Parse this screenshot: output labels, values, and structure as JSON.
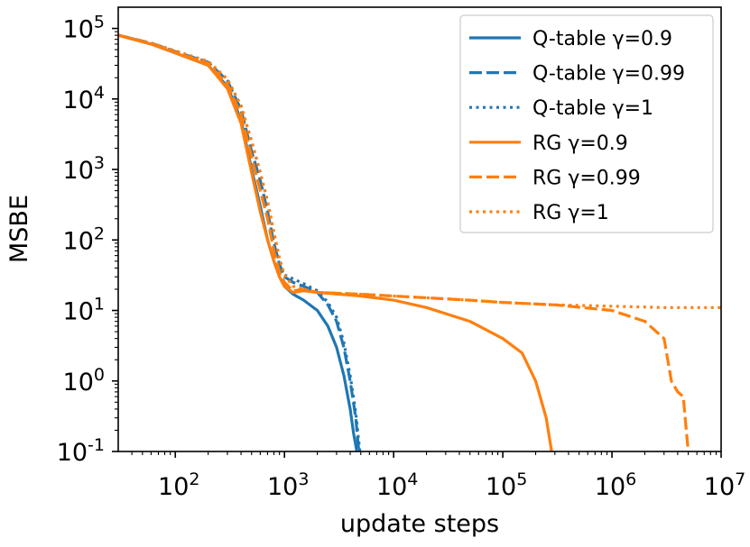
{
  "chart_data": {
    "type": "line",
    "title": "",
    "xlabel": "update steps",
    "ylabel": "MSBE",
    "xscale": "log",
    "yscale": "log",
    "xlim": [
      30,
      10000000
    ],
    "ylim": [
      0.1,
      200000
    ],
    "x_ticks": [
      {
        "value": 100,
        "base": "10",
        "exp": "2"
      },
      {
        "value": 1000,
        "base": "10",
        "exp": "3"
      },
      {
        "value": 10000,
        "base": "10",
        "exp": "4"
      },
      {
        "value": 100000,
        "base": "10",
        "exp": "5"
      },
      {
        "value": 1000000,
        "base": "10",
        "exp": "6"
      },
      {
        "value": 10000000,
        "base": "10",
        "exp": "7"
      }
    ],
    "y_ticks": [
      {
        "value": 0.1,
        "base": "10",
        "exp": "-1"
      },
      {
        "value": 1,
        "base": "10",
        "exp": "0"
      },
      {
        "value": 10,
        "base": "10",
        "exp": "1"
      },
      {
        "value": 100,
        "base": "10",
        "exp": "2"
      },
      {
        "value": 1000,
        "base": "10",
        "exp": "3"
      },
      {
        "value": 10000,
        "base": "10",
        "exp": "4"
      },
      {
        "value": 100000,
        "base": "10",
        "exp": "5"
      }
    ],
    "legend_position": "top-right",
    "series": [
      {
        "name": "Q-table γ=0.9",
        "color": "#1f77b4",
        "style": "solid",
        "x": [
          30,
          60,
          100,
          200,
          300,
          400,
          500,
          600,
          700,
          800,
          900,
          1000,
          1200,
          1500,
          2000,
          2500,
          3000,
          3500,
          4000,
          4300,
          4600
        ],
        "y": [
          80000,
          60000,
          45000,
          30000,
          15000,
          5000,
          1000,
          300,
          100,
          50,
          30,
          22,
          17,
          14,
          10,
          6,
          3,
          1.2,
          0.4,
          0.18,
          0.1
        ]
      },
      {
        "name": "Q-table γ=0.99",
        "color": "#1f77b4",
        "style": "dashed",
        "x": [
          30,
          60,
          100,
          200,
          300,
          400,
          500,
          600,
          700,
          800,
          900,
          1000,
          1200,
          1500,
          2000,
          2500,
          3000,
          3500,
          4000,
          4500,
          4800
        ],
        "y": [
          80000,
          62000,
          47000,
          33000,
          18000,
          7000,
          1800,
          700,
          250,
          90,
          45,
          30,
          25,
          22,
          18,
          12,
          7,
          3,
          1,
          0.3,
          0.1
        ]
      },
      {
        "name": "Q-table γ=1",
        "color": "#1f77b4",
        "style": "dotted",
        "x": [
          30,
          60,
          100,
          200,
          300,
          400,
          500,
          600,
          700,
          800,
          900,
          1000,
          1200,
          1500,
          2000,
          2500,
          3000,
          3500,
          4000,
          4500,
          4900
        ],
        "y": [
          80000,
          62000,
          48000,
          34000,
          19000,
          8000,
          2500,
          900,
          350,
          120,
          50,
          32,
          28,
          24,
          19,
          13,
          8,
          3.5,
          1.2,
          0.35,
          0.1
        ]
      },
      {
        "name": "RG γ=0.9",
        "color": "#ff7f0e",
        "style": "solid",
        "x": [
          30,
          60,
          100,
          200,
          300,
          400,
          500,
          600,
          700,
          800,
          900,
          1000,
          1200,
          1500,
          2000,
          5000,
          10000,
          20000,
          50000,
          100000,
          150000,
          200000,
          250000,
          280000
        ],
        "y": [
          80000,
          60000,
          45000,
          30000,
          14000,
          4500,
          900,
          250,
          100,
          50,
          30,
          22,
          18,
          19,
          18,
          16,
          14,
          11,
          7,
          4,
          2.5,
          1,
          0.3,
          0.1
        ]
      },
      {
        "name": "RG γ=0.99",
        "color": "#ff7f0e",
        "style": "dashed",
        "x": [
          30,
          60,
          100,
          200,
          300,
          400,
          500,
          600,
          700,
          800,
          900,
          1000,
          1200,
          1500,
          2000,
          5000,
          10000,
          50000,
          100000,
          300000,
          1000000,
          2000000,
          3000000,
          3500000,
          4000000,
          4500000,
          4800000,
          5000000
        ],
        "y": [
          80000,
          61000,
          46000,
          32000,
          16000,
          6000,
          1500,
          500,
          200,
          70,
          35,
          25,
          19,
          20,
          18,
          17,
          16,
          14,
          13,
          12,
          10,
          7,
          4,
          1,
          0.7,
          0.6,
          0.2,
          0.1
        ]
      },
      {
        "name": "RG γ=1",
        "color": "#ff7f0e",
        "style": "dotted",
        "x": [
          30,
          60,
          100,
          200,
          300,
          400,
          500,
          600,
          700,
          800,
          900,
          1000,
          1200,
          1500,
          2000,
          5000,
          10000,
          50000,
          100000,
          300000,
          1000000,
          3000000,
          10000000
        ],
        "y": [
          80000,
          62000,
          48000,
          34000,
          19000,
          8000,
          2500,
          900,
          350,
          130,
          55,
          32,
          22,
          20,
          18,
          17,
          16,
          14,
          13,
          12,
          11.5,
          11,
          11
        ]
      }
    ]
  }
}
